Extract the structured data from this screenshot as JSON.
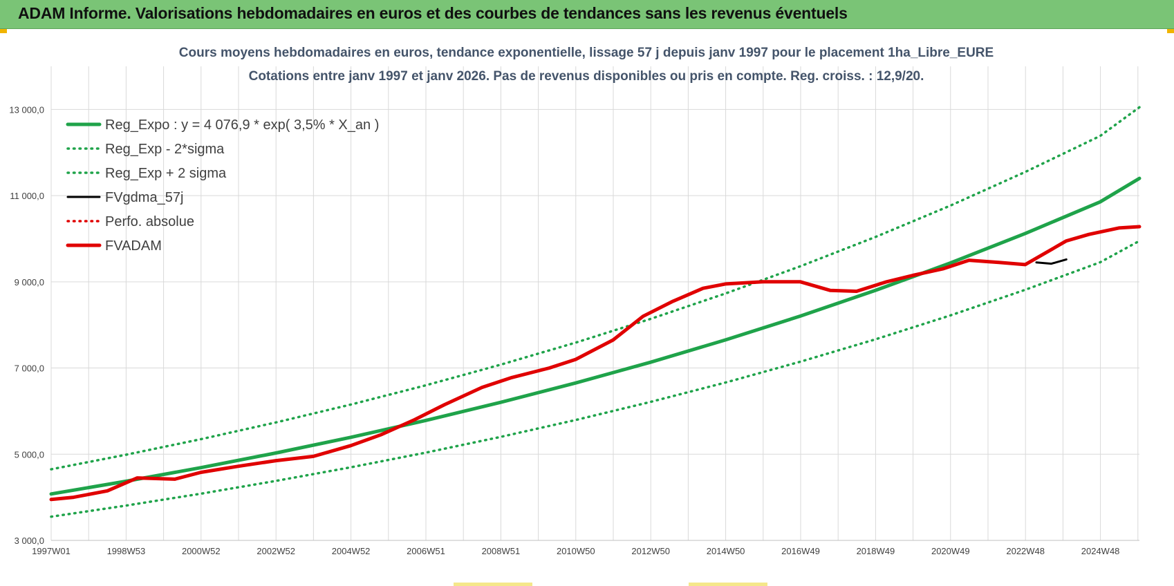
{
  "header": {
    "title": "ADAM Informe. Valorisations hebdomadaires en euros et des courbes de tendances sans les revenus éventuels"
  },
  "colors": {
    "header_bg": "#7ac476",
    "trend_green": "#1fa34a",
    "fvadam_red": "#e00000",
    "gdma_black": "#000000",
    "grid": "#d9d9d9",
    "title_text": "#44546a"
  },
  "chart_data": {
    "type": "line",
    "title_line1": "Cours moyens  hebdomadaires en euros, tendance exponentielle, lissage 57 j depuis janv 1997 pour le placement 1ha_Libre_EURE",
    "title_line2": "Cotations entre janv 1997 et janv 2026. Pas de revenus disponibles ou pris en compte. Reg. croiss. : 12,9/20.",
    "x_tick_labels": [
      "1997W01",
      "1998W53",
      "2000W52",
      "2002W52",
      "2004W52",
      "2006W51",
      "2008W51",
      "2010W50",
      "2012W50",
      "2014W50",
      "2016W49",
      "2018W49",
      "2020W49",
      "2022W48",
      "2024W48"
    ],
    "x_range": [
      1997.0,
      2026.05
    ],
    "y_tick_labels": [
      "3 000,0",
      "5 000,0",
      "7 000,0",
      "9 000,0",
      "11 000,0",
      "13 000,0"
    ],
    "y_ticks": [
      3000,
      5000,
      7000,
      9000,
      11000,
      13000
    ],
    "ylim": [
      3000,
      14000
    ],
    "grid": true,
    "legend_position": "top-left",
    "legend": [
      {
        "label": "Reg_Expo : y = 4 076,9 * exp( 3,5% *  X_an )",
        "color": "#1fa34a",
        "style": "solid-thick"
      },
      {
        "label": "Reg_Exp - 2*sigma",
        "color": "#1fa34a",
        "style": "dotted"
      },
      {
        "label": "Reg_Exp + 2 sigma",
        "color": "#1fa34a",
        "style": "dotted"
      },
      {
        "label": "FVgdma_57j",
        "color": "#000000",
        "style": "solid"
      },
      {
        "label": "Perfo. absolue",
        "color": "#e00000",
        "style": "dotted"
      },
      {
        "label": "FVADAM",
        "color": "#e00000",
        "style": "solid-thick"
      }
    ],
    "series": [
      {
        "name": "Reg_Expo : y = 4 076,9 * exp( 3,5% *  X_an )",
        "x": [
          1997.0,
          1999.0,
          2001.0,
          2003.0,
          2005.0,
          2007.0,
          2009.0,
          2011.0,
          2013.0,
          2015.0,
          2017.0,
          2019.0,
          2021.0,
          2023.0,
          2025.0,
          2026.05
        ],
        "values": [
          4077,
          4373,
          4689,
          5029,
          5393,
          5784,
          6203,
          6652,
          7134,
          7651,
          8205,
          8800,
          9437,
          10121,
          10854,
          11400
        ]
      },
      {
        "name": "Reg_Exp - 2*sigma",
        "x": [
          1997.0,
          1999.0,
          2001.0,
          2003.0,
          2005.0,
          2007.0,
          2009.0,
          2011.0,
          2013.0,
          2015.0,
          2017.0,
          2019.0,
          2021.0,
          2023.0,
          2025.0,
          2026.05
        ],
        "values": [
          3550,
          3808,
          4084,
          4380,
          4697,
          5037,
          5402,
          5794,
          6213,
          6663,
          7146,
          7664,
          8219,
          8815,
          9453,
          9950
        ]
      },
      {
        "name": "Reg_Exp + 2 sigma",
        "x": [
          1997.0,
          1999.0,
          2001.0,
          2003.0,
          2005.0,
          2007.0,
          2009.0,
          2011.0,
          2013.0,
          2015.0,
          2017.0,
          2019.0,
          2021.0,
          2023.0,
          2025.0,
          2026.05
        ],
        "values": [
          4650,
          4988,
          5349,
          5737,
          6152,
          6598,
          7077,
          7589,
          8139,
          8729,
          9361,
          10040,
          10767,
          11548,
          12384,
          13050
        ]
      },
      {
        "name": "FVgdma_57j",
        "x": [
          2023.3,
          2023.7,
          2024.1
        ],
        "values": [
          9450,
          9420,
          9520
        ]
      },
      {
        "name": "FVADAM",
        "x": [
          1997.0,
          1997.6,
          1998.5,
          1999.3,
          2000.3,
          2001.0,
          2002.0,
          2003.0,
          2004.0,
          2005.0,
          2005.8,
          2006.7,
          2007.5,
          2008.5,
          2009.3,
          2010.3,
          2011.0,
          2012.0,
          2012.8,
          2013.6,
          2014.4,
          2015.0,
          2016.0,
          2017.0,
          2017.8,
          2018.5,
          2019.3,
          2020.0,
          2020.8,
          2021.5,
          2022.3,
          2023.0,
          2023.6,
          2024.1,
          2024.7,
          2025.5,
          2026.05
        ],
        "values": [
          3950,
          4000,
          4150,
          4450,
          4420,
          4580,
          4720,
          4850,
          4950,
          5200,
          5450,
          5800,
          6150,
          6550,
          6780,
          7000,
          7200,
          7650,
          8200,
          8550,
          8850,
          8950,
          9000,
          9000,
          8800,
          8780,
          9000,
          9150,
          9300,
          9500,
          9450,
          9400,
          9700,
          9950,
          10100,
          10250,
          10280
        ]
      }
    ]
  }
}
